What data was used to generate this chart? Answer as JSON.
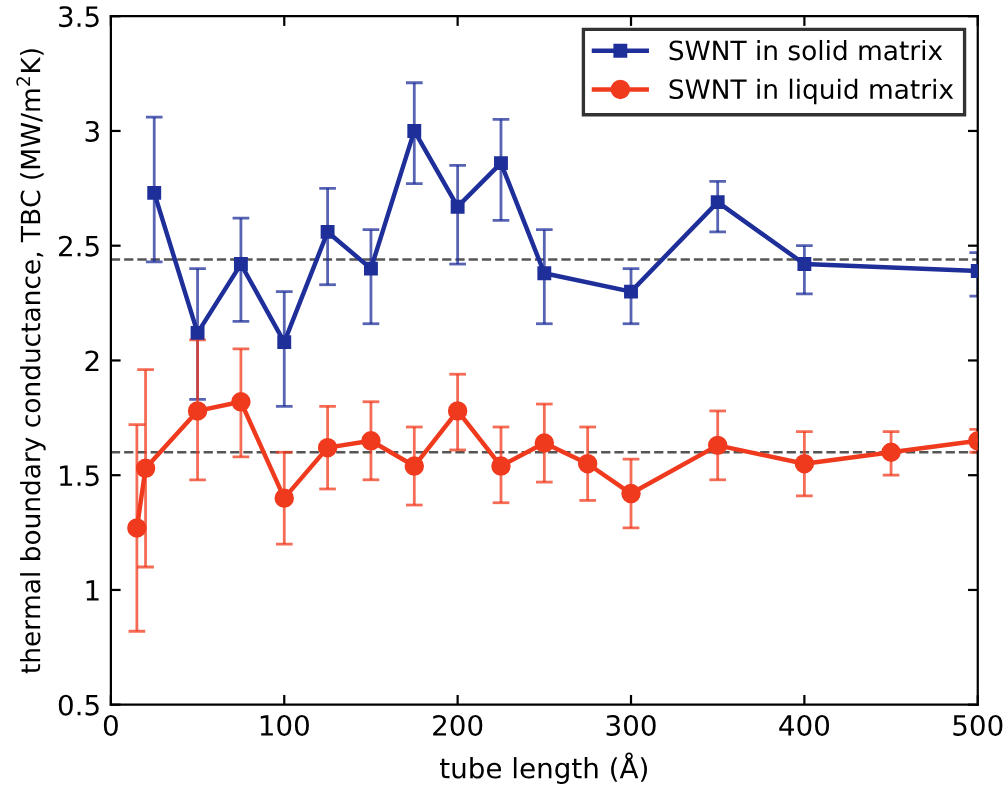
{
  "chart_data": {
    "type": "line",
    "xlabel": "tube length (Å)",
    "ylabel": "thermal boundary conductance, TBC (MW/m$^{2}$K)",
    "xlim": [
      0,
      500
    ],
    "xticks": [
      0,
      100,
      200,
      300,
      400,
      500
    ],
    "ylim": [
      0.5,
      3.5
    ],
    "yticks": [
      0.5,
      1,
      1.5,
      2,
      2.5,
      3,
      3.5
    ],
    "legend": "top right",
    "grid": false,
    "series": [
      {
        "name": "SWNT in solid matrix",
        "color": "#1f2f9a",
        "marker": "square",
        "x": [
          25,
          50,
          75,
          100,
          125,
          150,
          175,
          200,
          225,
          250,
          300,
          350,
          400,
          500
        ],
        "values": [
          2.73,
          2.12,
          2.42,
          2.08,
          2.56,
          2.4,
          3.0,
          2.67,
          2.86,
          2.38,
          2.3,
          2.69,
          2.42,
          2.39
        ],
        "errors": [
          [
            2.43,
            3.06
          ],
          [
            1.83,
            2.4
          ],
          [
            2.17,
            2.62
          ],
          [
            1.8,
            2.3
          ],
          [
            2.33,
            2.75
          ],
          [
            2.16,
            2.57
          ],
          [
            2.77,
            3.21
          ],
          [
            2.42,
            2.85
          ],
          [
            2.61,
            3.05
          ],
          [
            2.16,
            2.57
          ],
          [
            2.16,
            2.4
          ],
          [
            2.56,
            2.78
          ],
          [
            2.29,
            2.5
          ],
          [
            2.28,
            2.47
          ]
        ]
      },
      {
        "name": "SWNT in liquid matrix",
        "color": "#f03a1e",
        "marker": "circle",
        "x": [
          15,
          20,
          50,
          75,
          100,
          125,
          150,
          175,
          200,
          225,
          250,
          275,
          300,
          350,
          400,
          450,
          500
        ],
        "values": [
          1.27,
          1.53,
          1.78,
          1.82,
          1.4,
          1.62,
          1.65,
          1.54,
          1.78,
          1.54,
          1.64,
          1.55,
          1.42,
          1.63,
          1.55,
          1.6,
          1.65
        ],
        "errors": [
          [
            0.82,
            1.72
          ],
          [
            1.1,
            1.96
          ],
          [
            1.48,
            2.09
          ],
          [
            1.58,
            2.05
          ],
          [
            1.2,
            1.6
          ],
          [
            1.44,
            1.8
          ],
          [
            1.48,
            1.82
          ],
          [
            1.37,
            1.71
          ],
          [
            1.61,
            1.94
          ],
          [
            1.38,
            1.71
          ],
          [
            1.47,
            1.81
          ],
          [
            1.39,
            1.71
          ],
          [
            1.27,
            1.57
          ],
          [
            1.48,
            1.78
          ],
          [
            1.41,
            1.69
          ],
          [
            1.5,
            1.69
          ],
          [
            1.6,
            1.7
          ]
        ]
      }
    ],
    "ref_lines": [
      {
        "axis": "y",
        "value": 2.44,
        "color": "#555555",
        "line_style": "dashed"
      },
      {
        "axis": "y",
        "value": 1.6,
        "color": "#555555",
        "line_style": "dashed"
      }
    ]
  }
}
